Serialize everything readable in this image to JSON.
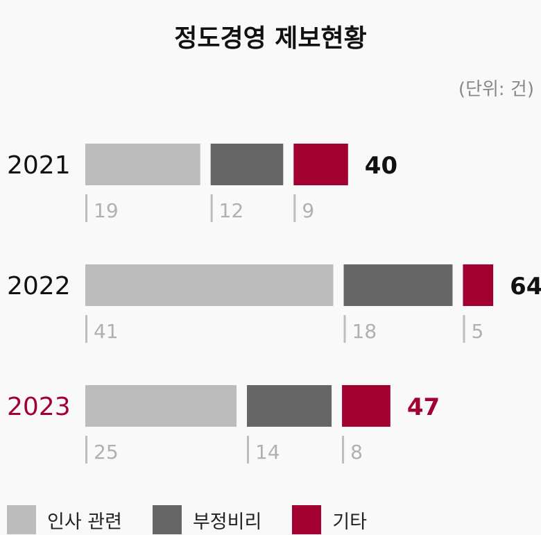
{
  "chart_data": {
    "type": "bar",
    "stacked": true,
    "orientation": "horizontal",
    "title": "정도경영 제보현황",
    "unit_label": "(단위: 건)",
    "categories": [
      "2021",
      "2022",
      "2023"
    ],
    "totals": [
      40,
      64,
      47
    ],
    "series": [
      {
        "name": "인사 관련",
        "values": [
          19,
          41,
          25
        ],
        "color": "#bcbcbc"
      },
      {
        "name": "부정비리",
        "values": [
          12,
          18,
          14
        ],
        "color": "#666666"
      },
      {
        "name": "기타",
        "values": [
          9,
          5,
          8
        ],
        "color": "#a30032"
      }
    ],
    "highlight_category": "2023",
    "colors": {
      "highlight": "#a30032",
      "text": "#111111",
      "value_label": "#b0b0b0",
      "background": "#f9f9f9"
    },
    "legend_position": "bottom-left",
    "grid": false
  }
}
